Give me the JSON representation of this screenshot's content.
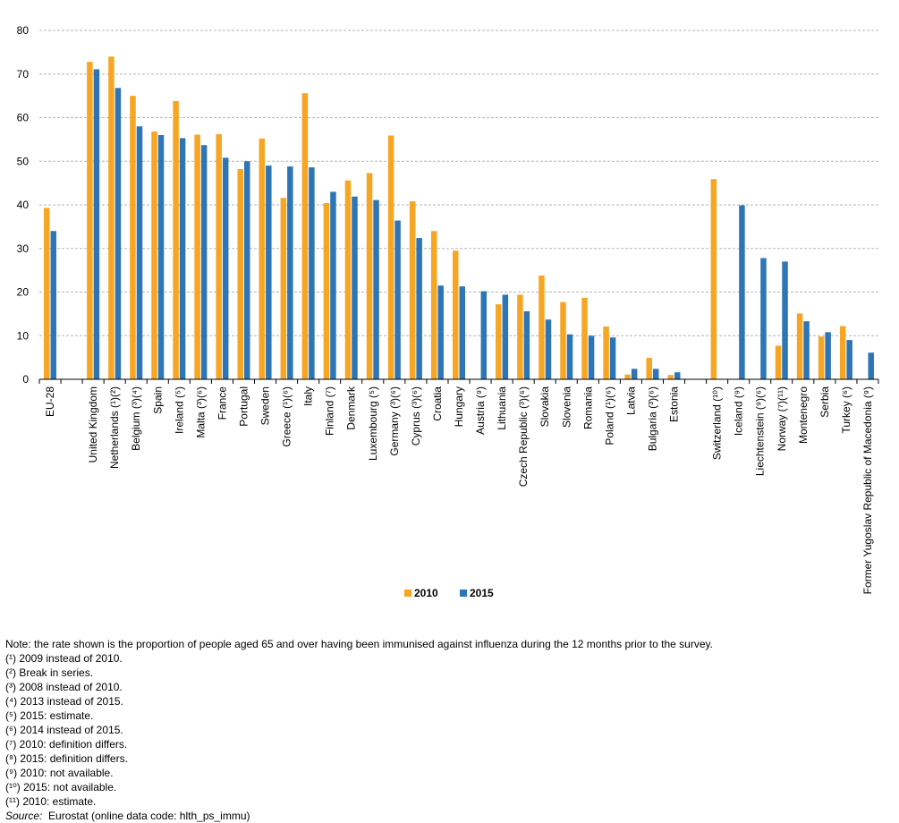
{
  "chart_data": {
    "type": "bar",
    "title": "",
    "xlabel": "",
    "ylabel": "",
    "ylim": [
      0,
      80
    ],
    "yticks": [
      0,
      10,
      20,
      30,
      40,
      50,
      60,
      70,
      80
    ],
    "grid": true,
    "legend_position": "bottom",
    "categories": [
      "EU-28",
      "",
      "United Kingdom",
      "Netherlands (¹)(²)",
      "Belgium (³)(⁴)",
      "Spain",
      "Ireland (⁵)",
      "Malta (³)(⁶)",
      "France",
      "Portugal",
      "Sweden",
      "Greece (¹)(⁶)",
      "Italy",
      "Finland (⁷)",
      "Denmark",
      "Luxembourg (⁵)",
      "Germany (³)(⁶)",
      "Cyprus (³)(⁶)",
      "Croatia",
      "Hungary",
      "Austria (⁹)",
      "Lithuania",
      "Czech Republic (³)(⁶)",
      "Slovakia",
      "Slovenia",
      "Romania",
      "Poland (¹)(⁶)",
      "Latvia",
      "Bulgaria (³)(⁶)",
      "Estonia",
      "",
      "Switzerland (¹⁰)",
      "Iceland (⁹)",
      "Liechtenstein (⁹)(⁶)",
      "Norway (⁷)(¹¹)",
      "Montenegro",
      "Serbia",
      "Turkey (⁶)",
      "Former Yugoslav Republic of Macedonia (⁹)"
    ],
    "series": [
      {
        "name": "2010",
        "color": "#F6A623",
        "values": [
          39.3,
          null,
          72.8,
          74.0,
          65.0,
          56.8,
          63.8,
          56.1,
          56.2,
          48.2,
          55.2,
          41.6,
          65.6,
          40.4,
          45.6,
          47.3,
          55.9,
          40.8,
          34.0,
          29.5,
          null,
          17.2,
          19.4,
          23.8,
          17.7,
          18.7,
          12.1,
          1.1,
          4.9,
          1.0,
          null,
          45.9,
          null,
          null,
          7.7,
          15.1,
          9.8,
          12.2,
          null
        ]
      },
      {
        "name": "2015",
        "color": "#2E75B6",
        "values": [
          34.0,
          null,
          71.1,
          66.8,
          58.0,
          56.0,
          55.3,
          53.7,
          50.8,
          50.0,
          49.0,
          48.8,
          48.6,
          43.0,
          41.9,
          41.1,
          36.4,
          32.4,
          21.5,
          21.3,
          20.2,
          19.4,
          15.6,
          13.7,
          10.3,
          10.0,
          9.6,
          2.4,
          2.4,
          1.6,
          null,
          null,
          39.9,
          27.8,
          27.0,
          13.3,
          10.8,
          9.0,
          6.1
        ]
      }
    ]
  },
  "notes": [
    "Note: the rate shown is the proportion of people aged 65 and over having been immunised against influenza during the 12 months prior to the survey.",
    "(¹) 2009 instead of 2010.",
    "(²) Break in series.",
    "(³) 2008 instead of 2010.",
    "(⁴) 2013 instead of 2015.",
    "(⁵) 2015: estimate.",
    "(⁶) 2014 instead of 2015.",
    "(⁷) 2010: definition differs.",
    "(⁸) 2015: definition differs.",
    "(⁹) 2010: not available.",
    "(¹⁰) 2015: not available.",
    "(¹¹) 2010: estimate."
  ],
  "source": {
    "label": "Source:",
    "text": "Eurostat (online data code: hlth_ps_immu)"
  }
}
